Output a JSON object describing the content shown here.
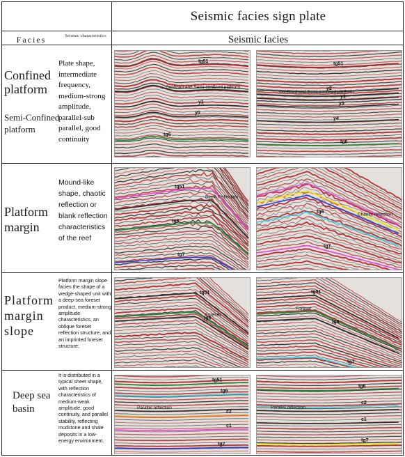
{
  "title": "Seismic facies sign plate",
  "headers": {
    "facies": "Facies",
    "characteristics": "Seismic characteristics",
    "seismic": "Seismic facies"
  },
  "rows": [
    {
      "facies": "Confined platform",
      "facies2": "Semi-Confined platform",
      "characteristics": "Plate shape, intermediate frequency, medium-strong amplitude, parallel-sub parallel, good continuity",
      "left_labels": [
        "tg51",
        "Confined and Semi-confined platform",
        "y1",
        "y0",
        "tg6"
      ],
      "right_labels": [
        "tg51",
        "Confined and Semi-confined platform",
        "y2",
        "y1",
        "y3",
        "y4",
        "tg6"
      ]
    },
    {
      "facies": "Platform margin",
      "characteristics": "Mound-like shape, chaotic reflection or blank reflection characteristics of the reef",
      "left_labels": [
        "tg51",
        "Blank Reflection",
        "tg6",
        "tg7"
      ],
      "right_labels": [
        "Chaotic reflection",
        "tg6",
        "tg7"
      ]
    },
    {
      "facies": "Platform margin slope",
      "characteristics": "Platform margin slope facies the shape of a wedge-shaped unit with a deep-sea foreset product, medium-strong amplitude characteristics, an oblique foreset reflection structure, and an imprinted foreset structure;",
      "left_labels": [
        "tg51",
        "Foreset",
        "tg6"
      ],
      "right_labels": [
        "tg51",
        "Foreset",
        "tg6",
        "tg7"
      ]
    },
    {
      "facies": "Deep sea basin",
      "characteristics": "It is distributed in a typical sheet shape, with reflection characteristics of medium-weak amplitude, good continuity, and parallel stability, reflecting mudstone and shale deposits in a low-energy environment.",
      "left_labels": [
        "tg51",
        "tg6",
        "Parallel reflection",
        "c2",
        "c1",
        "tg7"
      ],
      "right_labels": [
        "tg6",
        "c2",
        "Parallel reflection",
        "c1",
        "tg7"
      ]
    }
  ],
  "colors": {
    "trough": "#b3272b",
    "peak": "#2d2d2d",
    "horizon_green": "#1e8a3a",
    "horizon_cyan": "#3fd3e6",
    "horizon_magenta": "#e64ad0",
    "horizon_blue": "#2f3fd0",
    "horizon_yellow": "#f2e600",
    "horizon_orange": "#f0a030"
  }
}
